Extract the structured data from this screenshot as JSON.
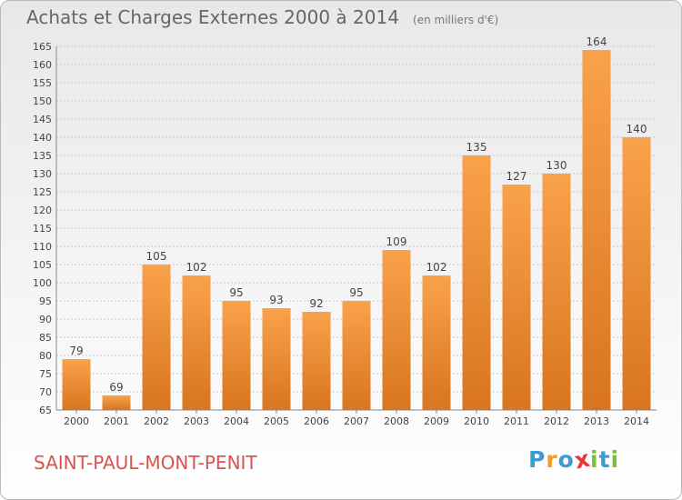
{
  "title": "Achats et Charges Externes 2000 à 2014",
  "subtitle": "(en milliers d'€)",
  "commune": "SAINT-PAUL-MONT-PENIT",
  "logo": {
    "letters": [
      "P",
      "r",
      "o",
      "x",
      "i",
      "t",
      "i"
    ],
    "colors": [
      "#3a9bd5",
      "#f59a23",
      "#3a9bd5",
      "#e03a3a",
      "#7cbf3a",
      "#3a9bd5",
      "#7cbf3a"
    ]
  },
  "colors": {
    "bar_light": "#f9a24b",
    "bar_dark": "#d9751f",
    "grid": "#c9c9c9",
    "text": "#444444"
  },
  "chart_data": {
    "type": "bar",
    "title": "Achats et Charges Externes 2000 à 2014",
    "subtitle": "(en milliers d'€)",
    "categories": [
      "2000",
      "2001",
      "2002",
      "2003",
      "2004",
      "2005",
      "2006",
      "2007",
      "2008",
      "2009",
      "2010",
      "2011",
      "2012",
      "2013",
      "2014"
    ],
    "values": [
      79,
      69,
      105,
      102,
      95,
      93,
      92,
      95,
      109,
      102,
      135,
      127,
      130,
      164,
      140
    ],
    "ylim": [
      65,
      165
    ],
    "yticks": [
      65,
      70,
      75,
      80,
      85,
      90,
      95,
      100,
      105,
      110,
      115,
      120,
      125,
      130,
      135,
      140,
      145,
      150,
      155,
      160,
      165
    ],
    "grid": true,
    "xlabel": "",
    "ylabel": ""
  }
}
